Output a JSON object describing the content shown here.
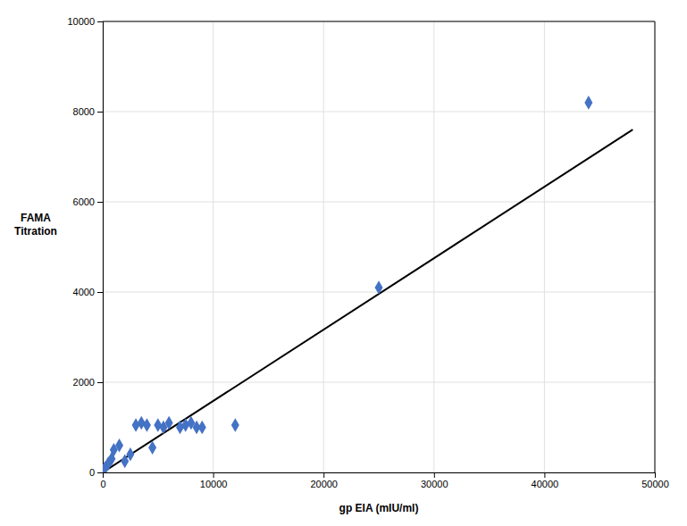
{
  "chart_data": {
    "type": "scatter",
    "xlabel": "gp EIA (mIU/ml)",
    "ylabel": [
      "FAMA",
      "Titration"
    ],
    "series": [
      {
        "type": "line",
        "color": "#000000",
        "line_style": "solid",
        "x": [
          0,
          48000
        ],
        "values": [
          0,
          7600
        ]
      },
      {
        "type": "scatter",
        "marker": "diamond",
        "color": "#4472C4",
        "x": [
          100,
          200,
          500,
          800,
          1000,
          1500,
          2000,
          2500,
          3000,
          3500,
          4000,
          4500,
          5000,
          5500,
          6000,
          7000,
          7500,
          8000,
          8500,
          9000,
          12000,
          25000,
          44000
        ],
        "values": [
          50,
          100,
          200,
          300,
          500,
          600,
          250,
          400,
          1050,
          1100,
          1050,
          550,
          1050,
          1000,
          1100,
          1000,
          1050,
          1100,
          1000,
          1000,
          1050,
          4100,
          8200
        ]
      }
    ],
    "xlim": [
      0,
      50000
    ],
    "ylim": [
      0,
      10000
    ],
    "xticks": [
      0,
      10000,
      20000,
      30000,
      40000,
      50000
    ],
    "yticks": [
      0,
      2000,
      4000,
      6000,
      8000,
      10000
    ],
    "grid": true
  }
}
